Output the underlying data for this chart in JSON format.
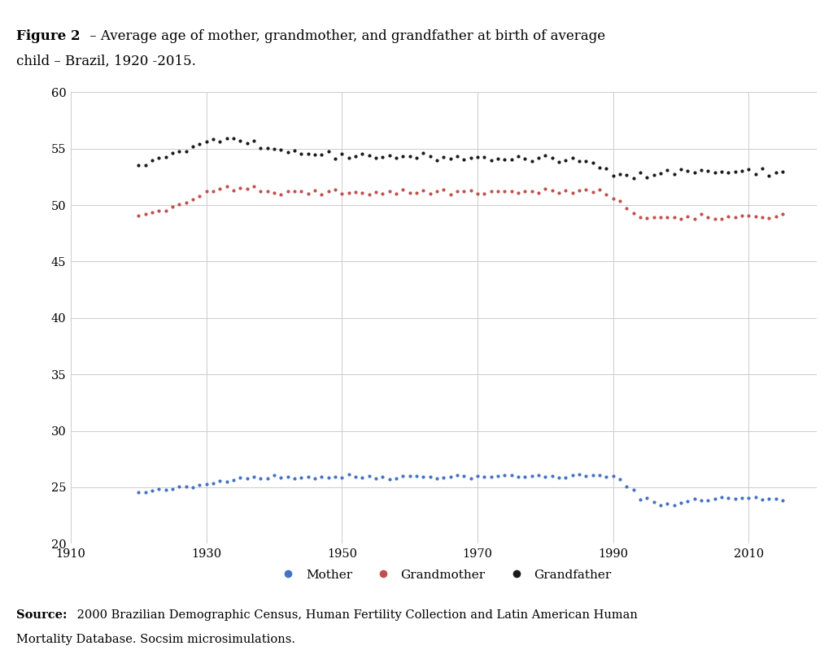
{
  "title_bold": "Figure 2",
  "title_rest": " – Average age of mother, grandmother, and grandfather at birth of average\nchild – Brazil, 1920 -2015.",
  "source_bold": "Source:",
  "source_rest": " 2000 Brazilian Demographic Census, Human Fertility Collection and Latin American Human\nMortality Database. Socsim microsimulations.",
  "xlim": [
    1910,
    2020
  ],
  "ylim": [
    20,
    60
  ],
  "xticks": [
    1910,
    1930,
    1950,
    1970,
    1990,
    2010
  ],
  "yticks": [
    20,
    25,
    30,
    35,
    40,
    45,
    50,
    55,
    60
  ],
  "mother_color": "#4472C4",
  "grandmother_color": "#C0504D",
  "grandfather_color": "#1A1A1A",
  "legend_labels": [
    "Mother",
    "Grandmother",
    "Grandfather"
  ],
  "background_color": "#FFFFFF",
  "grid_color": "#CCCCCC"
}
